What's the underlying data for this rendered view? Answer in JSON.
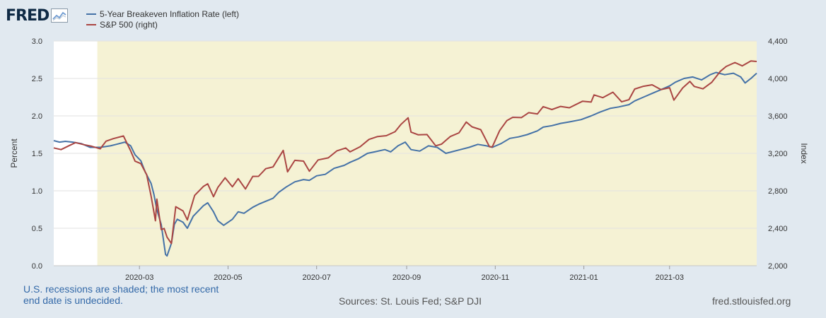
{
  "logo": {
    "text": "FRED",
    "icon": "chart-line-icon"
  },
  "chart_data": {
    "type": "line",
    "legend": [
      {
        "name": "5-Year Breakeven Inflation Rate (left)",
        "color": "#4572a7"
      },
      {
        "name": "S&P 500 (right)",
        "color": "#aa4643"
      }
    ],
    "left_axis": {
      "title": "Percent",
      "ylim": [
        0,
        3
      ],
      "ticks": [
        "0.0",
        "0.5",
        "1.0",
        "1.5",
        "2.0",
        "2.5",
        "3.0"
      ]
    },
    "right_axis": {
      "title": "Index",
      "ylim": [
        2000,
        4400
      ],
      "ticks": [
        "2,000",
        "2,400",
        "2,800",
        "3,200",
        "3,600",
        "4,000",
        "4,400"
      ]
    },
    "x_axis": {
      "range": [
        "2020-01-02",
        "2021-04-30"
      ],
      "ticks": [
        {
          "label": "2020-03",
          "date": "2020-03-01"
        },
        {
          "label": "2020-05",
          "date": "2020-05-01"
        },
        {
          "label": "2020-07",
          "date": "2020-07-01"
        },
        {
          "label": "2020-09",
          "date": "2020-09-01"
        },
        {
          "label": "2020-11",
          "date": "2020-11-01"
        },
        {
          "label": "2021-01",
          "date": "2021-01-01"
        },
        {
          "label": "2021-03",
          "date": "2021-03-01"
        }
      ]
    },
    "recession_shading": {
      "start": "2020-02-01",
      "end": "2021-04-30",
      "color": "#f5f2d4"
    },
    "series": [
      {
        "name": "5-Year Breakeven Inflation Rate (left)",
        "axis": "left",
        "color": "#4572a7",
        "points": [
          [
            "2020-01-02",
            1.67
          ],
          [
            "2020-01-06",
            1.65
          ],
          [
            "2020-01-10",
            1.66
          ],
          [
            "2020-01-15",
            1.65
          ],
          [
            "2020-01-21",
            1.63
          ],
          [
            "2020-01-27",
            1.58
          ],
          [
            "2020-02-03",
            1.58
          ],
          [
            "2020-02-10",
            1.6
          ],
          [
            "2020-02-14",
            1.62
          ],
          [
            "2020-02-20",
            1.65
          ],
          [
            "2020-02-24",
            1.6
          ],
          [
            "2020-02-27",
            1.48
          ],
          [
            "2020-03-02",
            1.4
          ],
          [
            "2020-03-05",
            1.25
          ],
          [
            "2020-03-09",
            1.1
          ],
          [
            "2020-03-11",
            0.95
          ],
          [
            "2020-03-13",
            0.75
          ],
          [
            "2020-03-16",
            0.55
          ],
          [
            "2020-03-18",
            0.28
          ],
          [
            "2020-03-19",
            0.15
          ],
          [
            "2020-03-20",
            0.13
          ],
          [
            "2020-03-23",
            0.3
          ],
          [
            "2020-03-25",
            0.55
          ],
          [
            "2020-03-27",
            0.62
          ],
          [
            "2020-03-31",
            0.58
          ],
          [
            "2020-04-03",
            0.5
          ],
          [
            "2020-04-07",
            0.66
          ],
          [
            "2020-04-10",
            0.72
          ],
          [
            "2020-04-14",
            0.8
          ],
          [
            "2020-04-17",
            0.84
          ],
          [
            "2020-04-21",
            0.72
          ],
          [
            "2020-04-24",
            0.6
          ],
          [
            "2020-04-28",
            0.54
          ],
          [
            "2020-05-04",
            0.62
          ],
          [
            "2020-05-08",
            0.72
          ],
          [
            "2020-05-12",
            0.7
          ],
          [
            "2020-05-18",
            0.78
          ],
          [
            "2020-05-22",
            0.82
          ],
          [
            "2020-05-27",
            0.86
          ],
          [
            "2020-06-01",
            0.9
          ],
          [
            "2020-06-05",
            0.98
          ],
          [
            "2020-06-10",
            1.05
          ],
          [
            "2020-06-16",
            1.12
          ],
          [
            "2020-06-22",
            1.15
          ],
          [
            "2020-06-26",
            1.14
          ],
          [
            "2020-07-01",
            1.2
          ],
          [
            "2020-07-07",
            1.22
          ],
          [
            "2020-07-13",
            1.3
          ],
          [
            "2020-07-20",
            1.34
          ],
          [
            "2020-07-24",
            1.38
          ],
          [
            "2020-07-30",
            1.43
          ],
          [
            "2020-08-05",
            1.5
          ],
          [
            "2020-08-10",
            1.52
          ],
          [
            "2020-08-17",
            1.55
          ],
          [
            "2020-08-21",
            1.52
          ],
          [
            "2020-08-26",
            1.6
          ],
          [
            "2020-08-31",
            1.65
          ],
          [
            "2020-09-04",
            1.55
          ],
          [
            "2020-09-10",
            1.53
          ],
          [
            "2020-09-16",
            1.6
          ],
          [
            "2020-09-22",
            1.58
          ],
          [
            "2020-09-28",
            1.5
          ],
          [
            "2020-10-02",
            1.52
          ],
          [
            "2020-10-08",
            1.55
          ],
          [
            "2020-10-14",
            1.58
          ],
          [
            "2020-10-20",
            1.62
          ],
          [
            "2020-10-26",
            1.6
          ],
          [
            "2020-10-30",
            1.58
          ],
          [
            "2020-11-05",
            1.63
          ],
          [
            "2020-11-11",
            1.7
          ],
          [
            "2020-11-17",
            1.72
          ],
          [
            "2020-11-23",
            1.75
          ],
          [
            "2020-11-30",
            1.8
          ],
          [
            "2020-12-04",
            1.85
          ],
          [
            "2020-12-10",
            1.87
          ],
          [
            "2020-12-16",
            1.9
          ],
          [
            "2020-12-22",
            1.92
          ],
          [
            "2020-12-30",
            1.95
          ],
          [
            "2021-01-06",
            2.0
          ],
          [
            "2021-01-12",
            2.05
          ],
          [
            "2021-01-19",
            2.1
          ],
          [
            "2021-01-25",
            2.12
          ],
          [
            "2021-02-01",
            2.15
          ],
          [
            "2021-02-05",
            2.2
          ],
          [
            "2021-02-11",
            2.25
          ],
          [
            "2021-02-17",
            2.3
          ],
          [
            "2021-02-23",
            2.35
          ],
          [
            "2021-03-01",
            2.4
          ],
          [
            "2021-03-05",
            2.45
          ],
          [
            "2021-03-11",
            2.5
          ],
          [
            "2021-03-17",
            2.52
          ],
          [
            "2021-03-23",
            2.48
          ],
          [
            "2021-03-29",
            2.55
          ],
          [
            "2021-04-02",
            2.58
          ],
          [
            "2021-04-08",
            2.55
          ],
          [
            "2021-04-14",
            2.57
          ],
          [
            "2021-04-19",
            2.52
          ],
          [
            "2021-04-22",
            2.44
          ],
          [
            "2021-04-26",
            2.5
          ],
          [
            "2021-04-30",
            2.57
          ]
        ]
      },
      {
        "name": "S&P 500 (right)",
        "axis": "right",
        "color": "#aa4643",
        "points": [
          [
            "2020-01-02",
            3258
          ],
          [
            "2020-01-07",
            3240
          ],
          [
            "2020-01-13",
            3285
          ],
          [
            "2020-01-17",
            3315
          ],
          [
            "2020-01-23",
            3292
          ],
          [
            "2020-01-28",
            3276
          ],
          [
            "2020-02-03",
            3248
          ],
          [
            "2020-02-07",
            3330
          ],
          [
            "2020-02-12",
            3357
          ],
          [
            "2020-02-19",
            3386
          ],
          [
            "2020-02-24",
            3226
          ],
          [
            "2020-02-27",
            3116
          ],
          [
            "2020-03-02",
            3090
          ],
          [
            "2020-03-06",
            2972
          ],
          [
            "2020-03-09",
            2746
          ],
          [
            "2020-03-12",
            2480
          ],
          [
            "2020-03-13",
            2711
          ],
          [
            "2020-03-16",
            2386
          ],
          [
            "2020-03-18",
            2398
          ],
          [
            "2020-03-20",
            2305
          ],
          [
            "2020-03-23",
            2237
          ],
          [
            "2020-03-26",
            2630
          ],
          [
            "2020-03-31",
            2585
          ],
          [
            "2020-04-03",
            2489
          ],
          [
            "2020-04-08",
            2750
          ],
          [
            "2020-04-14",
            2846
          ],
          [
            "2020-04-17",
            2875
          ],
          [
            "2020-04-21",
            2737
          ],
          [
            "2020-04-24",
            2836
          ],
          [
            "2020-04-29",
            2939
          ],
          [
            "2020-05-04",
            2843
          ],
          [
            "2020-05-08",
            2930
          ],
          [
            "2020-05-13",
            2820
          ],
          [
            "2020-05-18",
            2954
          ],
          [
            "2020-05-22",
            2955
          ],
          [
            "2020-05-27",
            3036
          ],
          [
            "2020-06-01",
            3055
          ],
          [
            "2020-06-08",
            3232
          ],
          [
            "2020-06-11",
            3002
          ],
          [
            "2020-06-16",
            3125
          ],
          [
            "2020-06-22",
            3117
          ],
          [
            "2020-06-26",
            3009
          ],
          [
            "2020-07-02",
            3130
          ],
          [
            "2020-07-09",
            3152
          ],
          [
            "2020-07-15",
            3227
          ],
          [
            "2020-07-21",
            3257
          ],
          [
            "2020-07-24",
            3216
          ],
          [
            "2020-07-31",
            3271
          ],
          [
            "2020-08-06",
            3349
          ],
          [
            "2020-08-12",
            3380
          ],
          [
            "2020-08-18",
            3389
          ],
          [
            "2020-08-24",
            3431
          ],
          [
            "2020-08-28",
            3508
          ],
          [
            "2020-09-02",
            3580
          ],
          [
            "2020-09-04",
            3427
          ],
          [
            "2020-09-09",
            3398
          ],
          [
            "2020-09-15",
            3401
          ],
          [
            "2020-09-21",
            3281
          ],
          [
            "2020-09-25",
            3298
          ],
          [
            "2020-10-01",
            3380
          ],
          [
            "2020-10-07",
            3419
          ],
          [
            "2020-10-12",
            3534
          ],
          [
            "2020-10-16",
            3483
          ],
          [
            "2020-10-22",
            3453
          ],
          [
            "2020-10-28",
            3271
          ],
          [
            "2020-10-30",
            3270
          ],
          [
            "2020-11-04",
            3443
          ],
          [
            "2020-11-09",
            3550
          ],
          [
            "2020-11-13",
            3585
          ],
          [
            "2020-11-19",
            3582
          ],
          [
            "2020-11-24",
            3635
          ],
          [
            "2020-11-30",
            3621
          ],
          [
            "2020-12-04",
            3699
          ],
          [
            "2020-12-10",
            3668
          ],
          [
            "2020-12-16",
            3701
          ],
          [
            "2020-12-22",
            3687
          ],
          [
            "2020-12-31",
            3756
          ],
          [
            "2021-01-06",
            3748
          ],
          [
            "2021-01-08",
            3824
          ],
          [
            "2021-01-14",
            3795
          ],
          [
            "2021-01-21",
            3853
          ],
          [
            "2021-01-27",
            3750
          ],
          [
            "2021-02-01",
            3773
          ],
          [
            "2021-02-05",
            3887
          ],
          [
            "2021-02-11",
            3916
          ],
          [
            "2021-02-17",
            3932
          ],
          [
            "2021-02-23",
            3881
          ],
          [
            "2021-03-01",
            3901
          ],
          [
            "2021-03-04",
            3768
          ],
          [
            "2021-03-10",
            3898
          ],
          [
            "2021-03-15",
            3968
          ],
          [
            "2021-03-18",
            3915
          ],
          [
            "2021-03-24",
            3889
          ],
          [
            "2021-03-30",
            3958
          ],
          [
            "2021-04-05",
            4077
          ],
          [
            "2021-04-09",
            4128
          ],
          [
            "2021-04-15",
            4170
          ],
          [
            "2021-04-20",
            4134
          ],
          [
            "2021-04-26",
            4187
          ],
          [
            "2021-04-30",
            4181
          ]
        ]
      }
    ]
  },
  "footer": {
    "note": "U.S. recessions are shaded; the most recent end date is undecided.",
    "sources": "Sources: St. Louis Fed; S&P DJI",
    "site": "fred.stlouisfed.org"
  }
}
